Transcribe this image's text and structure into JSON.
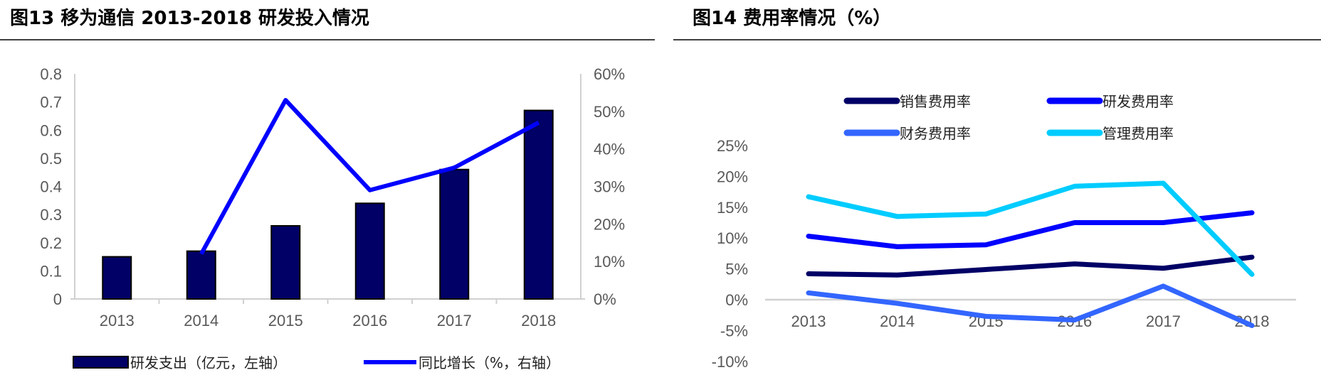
{
  "charts": [
    {
      "title": "图13 移为通信 2013-2018 研发投入情况",
      "type": "bar+line",
      "categories": [
        "2013",
        "2014",
        "2015",
        "2016",
        "2017",
        "2018"
      ],
      "y_left": {
        "ticks": [
          "0",
          "0.1",
          "0.2",
          "0.3",
          "0.4",
          "0.5",
          "0.6",
          "0.7",
          "0.8"
        ],
        "ylim": [
          0,
          0.8
        ]
      },
      "y_right": {
        "ticks": [
          "0%",
          "10%",
          "20%",
          "30%",
          "40%",
          "50%",
          "60%"
        ],
        "ylim": [
          0,
          60
        ]
      },
      "series": [
        {
          "name": "研发支出（亿元，左轴）",
          "kind": "bar",
          "axis": "left",
          "color": "#000066",
          "values": [
            0.15,
            0.17,
            0.26,
            0.34,
            0.46,
            0.67
          ]
        },
        {
          "name": "同比增长（%，右轴）",
          "kind": "line",
          "axis": "right",
          "color": "#0000FF",
          "values": [
            null,
            12,
            53,
            29,
            35,
            47
          ]
        }
      ],
      "legend": "bottom",
      "grid": false
    },
    {
      "title": "图14 费用率情况（%）",
      "type": "line",
      "categories": [
        "2013",
        "2014",
        "2015",
        "2016",
        "2017",
        "2018"
      ],
      "y": {
        "ticks": [
          "-10%",
          "-5%",
          "0%",
          "5%",
          "10%",
          "15%",
          "20%",
          "25%"
        ],
        "ylim": [
          -10,
          25
        ]
      },
      "series": [
        {
          "name": "销售费用率",
          "color": "#000066",
          "values": [
            4.2,
            4.0,
            4.9,
            5.8,
            5.1,
            6.9
          ]
        },
        {
          "name": "研发费用率",
          "color": "#0000FF",
          "values": [
            10.3,
            8.6,
            8.9,
            12.5,
            12.5,
            14.1
          ]
        },
        {
          "name": "财务费用率",
          "color": "#3366FF",
          "values": [
            1.1,
            -0.6,
            -2.7,
            -3.3,
            2.2,
            -4.2
          ]
        },
        {
          "name": "管理费用率",
          "color": "#00CCFF",
          "values": [
            16.7,
            13.5,
            13.9,
            18.4,
            18.9,
            4.1
          ]
        }
      ],
      "legend": "top",
      "grid": false
    }
  ]
}
